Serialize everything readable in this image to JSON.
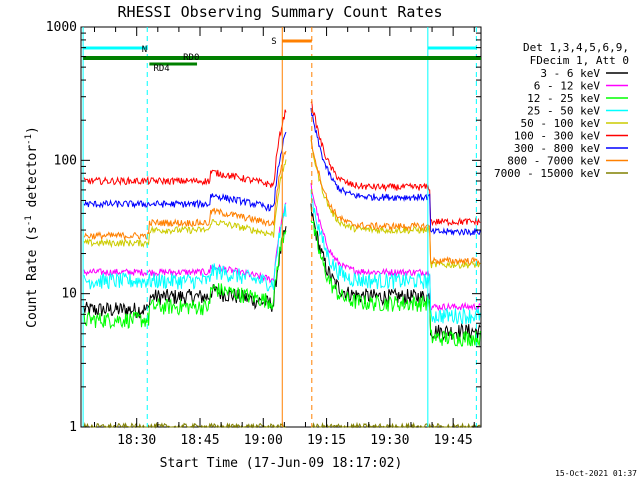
{
  "chart_data": {
    "type": "line",
    "title": "RHESSI Observing Summary Count Rates",
    "xlabel": "Start Time (17-Jun-09 18:17:02)",
    "ylabel_main": "Count Rate (s",
    "ylabel_sup1": "-1",
    "ylabel_mid": " detector",
    "ylabel_sup2": "-1",
    "ylabel_end": ")",
    "y_scale": "log",
    "ylim": [
      1,
      1000
    ],
    "xlim_minutes": [
      18.28,
      19.86
    ],
    "x_ticks": [
      "18:30",
      "18:45",
      "19:00",
      "19:15",
      "19:30",
      "19:45"
    ],
    "y_ticks": [
      "1",
      "10",
      "100",
      "1000"
    ],
    "footer_stamp": "15-Oct-2021 01:37",
    "legend_header": [
      "Det 1,3,4,5,6,9,",
      "FDecim 1, Att 0"
    ],
    "annotations": {
      "night_label": "N",
      "saa_label": "S",
      "rd0_label": "RD0",
      "rd4_label": "RD4"
    },
    "series": [
      {
        "name": "3 - 6 keV",
        "color": "#000000",
        "pre": 9.5,
        "flare_a": 10.5,
        "post": 9.5
      },
      {
        "name": "6 - 12 keV",
        "color": "#ff00ff",
        "pre": 14.5,
        "flare_a": 16.0,
        "post": 14.5
      },
      {
        "name": "12 - 25 keV",
        "color": "#00ff00",
        "pre": 8.0,
        "flare_a": 11.0,
        "post": 8.5
      },
      {
        "name": "25 - 50 keV",
        "color": "#00ffff",
        "pre": 12.5,
        "flare_a": 15.0,
        "post": 12.5
      },
      {
        "name": "50 - 100 keV",
        "color": "#cccc00",
        "pre": 30.0,
        "flare_a": 35.0,
        "post": 30.0
      },
      {
        "name": "100 - 300 keV",
        "color": "#ff0000",
        "pre": 70.0,
        "flare_a": 82.0,
        "post": 63.0
      },
      {
        "name": "300 - 800 keV",
        "color": "#0000ff",
        "pre": 47.0,
        "flare_a": 55.0,
        "post": 53.0
      },
      {
        "name": "800 - 7000 keV",
        "color": "#ff8000",
        "pre": 34.0,
        "flare_a": 42.0,
        "post": 32.0
      },
      {
        "name": "7000 - 15000 keV",
        "color": "#808000",
        "pre": 1.0,
        "flare_a": 1.0,
        "post": 1.0
      }
    ]
  }
}
